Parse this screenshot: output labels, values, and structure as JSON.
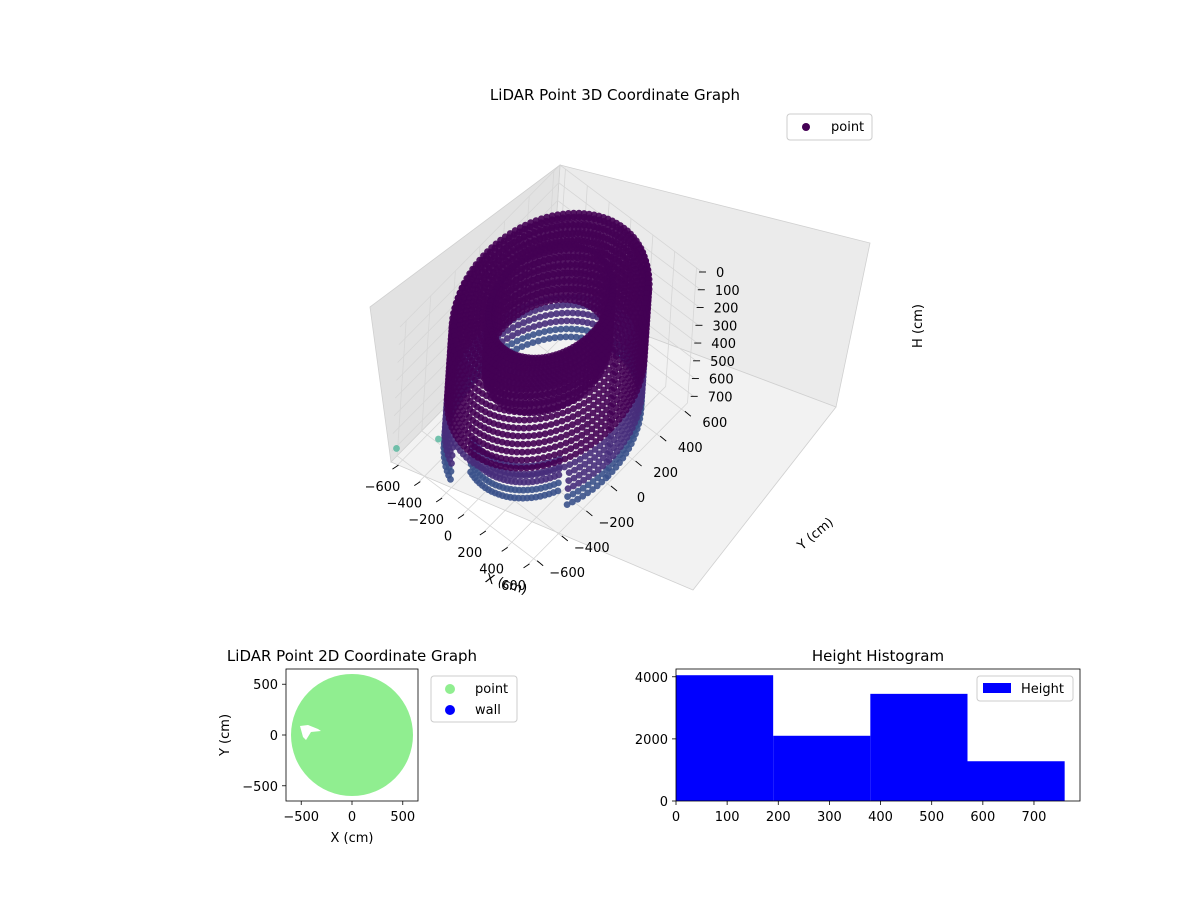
{
  "figure": {
    "background": "#ffffff"
  },
  "chart_data": [
    {
      "type": "scatter",
      "projection": "3d",
      "title": "LiDAR Point 3D Coordinate Graph",
      "xlabel": "X (cm)",
      "ylabel": "Y (cm)",
      "zlabel": "H (cm)",
      "xlim": [
        -650,
        650
      ],
      "ylim": [
        -650,
        650
      ],
      "zlim": [
        0,
        760
      ],
      "z_inverted": true,
      "x_ticks": [
        -600,
        -400,
        -200,
        0,
        200,
        400,
        600
      ],
      "y_ticks": [
        -600,
        -400,
        -200,
        0,
        200,
        400,
        600
      ],
      "z_ticks": [
        0,
        100,
        200,
        300,
        400,
        500,
        600,
        700
      ],
      "x_tick_labels": [
        "−600",
        "−400",
        "−200",
        "0",
        "200",
        "400",
        "600"
      ],
      "y_tick_labels": [
        "−600",
        "−400",
        "−200",
        "0",
        "200",
        "400",
        "600"
      ],
      "z_tick_labels": [
        "0",
        "100",
        "200",
        "300",
        "400",
        "500",
        "600",
        "700"
      ],
      "series": [
        {
          "name": "point",
          "colormap": "viridis",
          "shape": "cylindrical shell",
          "inner_radius": 380,
          "outer_radius": 600,
          "height_range": [
            0,
            760
          ],
          "outliers": [
            {
              "x": -640,
              "y": -620,
              "h": 700
            },
            {
              "x": -520,
              "y": -380,
              "h": 760
            }
          ]
        }
      ],
      "legend": {
        "placement": "upper-right",
        "entries": [
          "point"
        ]
      },
      "grid": true
    },
    {
      "type": "scatter",
      "title": "LiDAR Point 2D Coordinate Graph",
      "xlabel": "X (cm)",
      "ylabel": "Y (cm)",
      "xlim": [
        -650,
        650
      ],
      "ylim": [
        -650,
        650
      ],
      "x_ticks": [
        -500,
        0,
        500
      ],
      "y_ticks": [
        -500,
        0,
        500
      ],
      "x_tick_labels": [
        "−500",
        "0",
        "500"
      ],
      "y_tick_labels": [
        "−500",
        "0",
        "500"
      ],
      "series": [
        {
          "name": "point",
          "color": "#90ee90",
          "shape": "filled disk",
          "radius": 600
        },
        {
          "name": "wall",
          "color": "#0000ff",
          "points": []
        }
      ],
      "legend": {
        "placement": "outside-right",
        "entries": [
          "point",
          "wall"
        ]
      }
    },
    {
      "type": "bar",
      "subtype": "histogram",
      "title": "Height Histogram",
      "xlabel": "",
      "ylabel": "",
      "bin_edges": [
        0,
        190,
        380,
        570,
        760
      ],
      "counts": [
        4050,
        2100,
        3450,
        1280
      ],
      "xlim": [
        0,
        790
      ],
      "ylim": [
        0,
        4250
      ],
      "x_ticks": [
        0,
        100,
        200,
        300,
        400,
        500,
        600,
        700
      ],
      "y_ticks": [
        0,
        2000,
        4000
      ],
      "x_tick_labels": [
        "0",
        "100",
        "200",
        "300",
        "400",
        "500",
        "600",
        "700"
      ],
      "y_tick_labels": [
        "0",
        "2000",
        "4000"
      ],
      "color": "#0000ff",
      "series": [
        {
          "name": "Height"
        }
      ],
      "legend": {
        "placement": "upper-right",
        "entries": [
          "Height"
        ]
      }
    }
  ]
}
